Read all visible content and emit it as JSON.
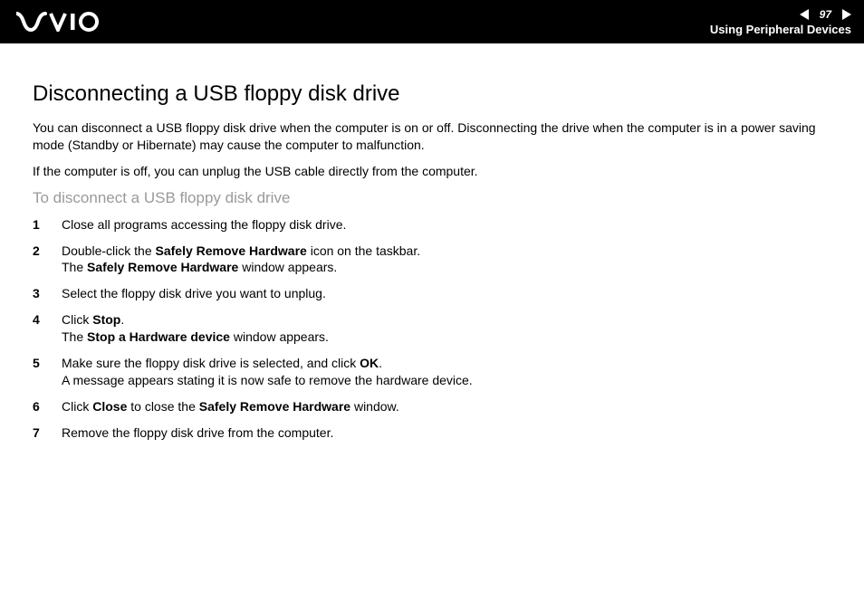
{
  "header": {
    "page_number": "97",
    "section": "Using Peripheral Devices",
    "colors": {
      "bg": "#000000",
      "fg": "#ffffff"
    }
  },
  "page": {
    "title": "Disconnecting a USB floppy disk drive",
    "para1": "You can disconnect a USB floppy disk drive when the computer is on or off. Disconnecting the drive when the computer is in a power saving mode (Standby or Hibernate) may cause the computer to malfunction.",
    "para2": "If the computer is off, you can unplug the USB cable directly from the computer.",
    "subhead": "To disconnect a USB floppy disk drive",
    "subhead_color": "#9a9a9a",
    "steps": [
      {
        "runs": [
          {
            "t": "Close all programs accessing the floppy disk drive."
          }
        ]
      },
      {
        "runs": [
          {
            "t": "Double-click the "
          },
          {
            "t": "Safely Remove Hardware",
            "bold": true
          },
          {
            "t": " icon on the taskbar."
          },
          {
            "br": true
          },
          {
            "t": "The "
          },
          {
            "t": "Safely Remove Hardware",
            "bold": true
          },
          {
            "t": " window appears."
          }
        ]
      },
      {
        "runs": [
          {
            "t": "Select the floppy disk drive you want to unplug."
          }
        ]
      },
      {
        "runs": [
          {
            "t": "Click "
          },
          {
            "t": "Stop",
            "bold": true
          },
          {
            "t": "."
          },
          {
            "br": true
          },
          {
            "t": "The "
          },
          {
            "t": "Stop a Hardware device",
            "bold": true
          },
          {
            "t": " window appears."
          }
        ]
      },
      {
        "runs": [
          {
            "t": "Make sure the floppy disk drive is selected, and click "
          },
          {
            "t": "OK",
            "bold": true
          },
          {
            "t": "."
          },
          {
            "br": true
          },
          {
            "t": "A message appears stating it is now safe to remove the hardware device."
          }
        ]
      },
      {
        "runs": [
          {
            "t": "Click "
          },
          {
            "t": "Close",
            "bold": true
          },
          {
            "t": " to close the "
          },
          {
            "t": "Safely Remove Hardware",
            "bold": true
          },
          {
            "t": " window."
          }
        ]
      },
      {
        "runs": [
          {
            "t": "Remove the floppy disk drive from the computer."
          }
        ]
      }
    ],
    "typography": {
      "title_fontsize_pt": 18,
      "body_fontsize_pt": 10.5,
      "subhead_fontsize_pt": 13,
      "font_family": "Arial"
    }
  }
}
